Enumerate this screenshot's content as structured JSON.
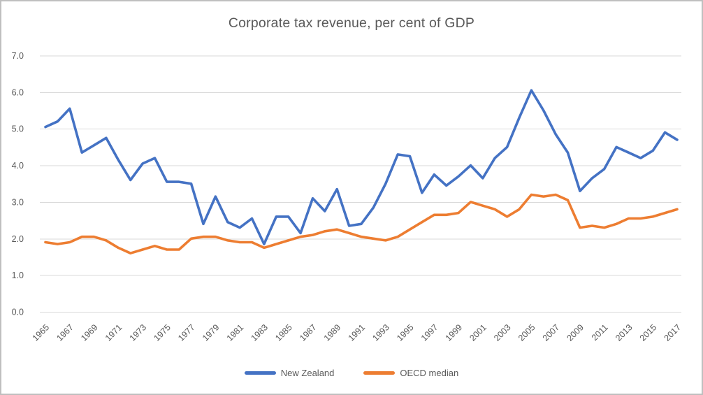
{
  "frame": {
    "background": "#FFFFFF",
    "border_color": "#BFBFBF"
  },
  "chart_data": {
    "type": "line",
    "title": "Corporate tax revenue, per cent of GDP",
    "xlabel": "",
    "ylabel": "",
    "ylim": [
      0,
      7
    ],
    "y_tick_step": 1,
    "y_tick_labels": [
      "0.0",
      "1.0",
      "2.0",
      "3.0",
      "4.0",
      "5.0",
      "6.0",
      "7.0"
    ],
    "grid": "horizontal",
    "gridline_color": "#D9D9D9",
    "label_color": "#595959",
    "legend_position": "bottom",
    "x": [
      1965,
      1966,
      1967,
      1968,
      1969,
      1970,
      1971,
      1972,
      1973,
      1974,
      1975,
      1976,
      1977,
      1978,
      1979,
      1980,
      1981,
      1982,
      1983,
      1984,
      1985,
      1986,
      1987,
      1988,
      1989,
      1990,
      1991,
      1992,
      1993,
      1994,
      1995,
      1996,
      1997,
      1998,
      1999,
      2000,
      2001,
      2002,
      2003,
      2004,
      2005,
      2006,
      2007,
      2008,
      2009,
      2010,
      2011,
      2012,
      2013,
      2014,
      2015,
      2016,
      2017
    ],
    "x_tick_labels": [
      "1965",
      "1967",
      "1969",
      "1971",
      "1973",
      "1975",
      "1977",
      "1979",
      "1981",
      "1983",
      "1985",
      "1987",
      "1989",
      "1991",
      "1993",
      "1995",
      "1997",
      "1999",
      "2001",
      "2003",
      "2005",
      "2007",
      "2009",
      "2011",
      "2013",
      "2015",
      "2017"
    ],
    "series": [
      {
        "name": "New Zealand",
        "color": "#4472C4",
        "values": [
          5.05,
          5.2,
          5.55,
          4.35,
          4.55,
          4.75,
          4.15,
          3.6,
          4.05,
          4.2,
          3.55,
          3.55,
          3.5,
          2.4,
          3.15,
          2.45,
          2.3,
          2.55,
          1.85,
          2.6,
          2.6,
          2.15,
          3.1,
          2.75,
          3.35,
          2.35,
          2.4,
          2.85,
          3.5,
          4.3,
          4.25,
          3.25,
          3.75,
          3.45,
          3.7,
          4.0,
          3.65,
          4.2,
          4.5,
          5.3,
          6.05,
          5.5,
          4.85,
          4.35,
          3.3,
          3.65,
          3.9,
          4.5,
          4.35,
          4.2,
          4.4,
          4.9,
          4.7
        ]
      },
      {
        "name": "OECD median",
        "color": "#ED7D31",
        "values": [
          1.9,
          1.85,
          1.9,
          2.05,
          2.05,
          1.95,
          1.75,
          1.6,
          1.7,
          1.8,
          1.7,
          1.7,
          2.0,
          2.05,
          2.05,
          1.95,
          1.9,
          1.9,
          1.75,
          1.85,
          1.95,
          2.05,
          2.1,
          2.2,
          2.25,
          2.15,
          2.05,
          2.0,
          1.95,
          2.05,
          2.25,
          2.45,
          2.65,
          2.65,
          2.7,
          3.0,
          2.9,
          2.8,
          2.6,
          2.8,
          3.2,
          3.15,
          3.2,
          3.05,
          2.3,
          2.35,
          2.3,
          2.4,
          2.55,
          2.55,
          2.6,
          2.7,
          2.8
        ]
      }
    ]
  }
}
